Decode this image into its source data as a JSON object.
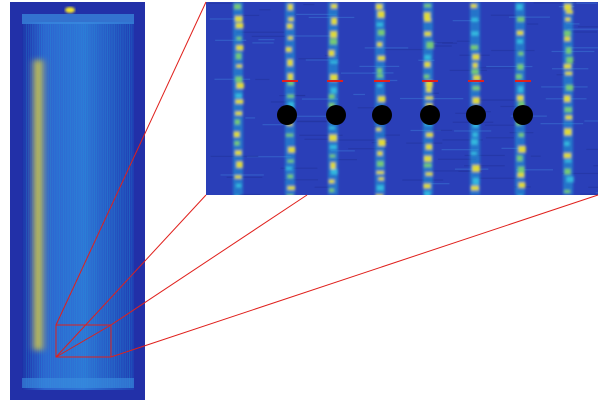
{
  "figure": {
    "colors": {
      "background": "#ffffff",
      "low": "#2a3fb8",
      "mid": "#1fa0d8",
      "high": "#f5e52a",
      "accent_line": "#e0201c",
      "marker": "#000000"
    },
    "overview_panel": {
      "label": ""
    },
    "zoom_panel": {
      "label": ""
    },
    "markers": {
      "count": 6
    },
    "ticks": {
      "count": 6
    }
  }
}
